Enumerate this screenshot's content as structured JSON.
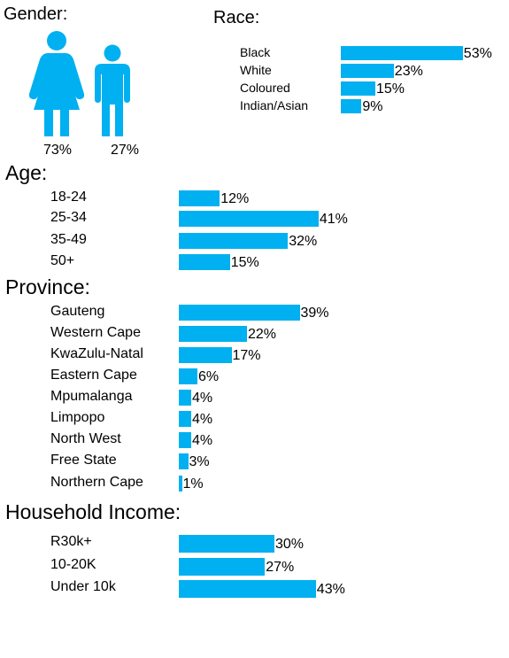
{
  "colors": {
    "bar": "#00b0f0",
    "icon": "#00b0f0"
  },
  "gender": {
    "title": "Gender:",
    "female_icon": "female-person-icon",
    "male_icon": "male-person-icon",
    "female_value": "73%",
    "male_value": "27%"
  },
  "chart_data": [
    {
      "type": "bar",
      "title": "Race:",
      "unit": "%",
      "categories": [
        "Black",
        "White",
        "Coloured",
        "Indian/Asian"
      ],
      "values": [
        53,
        23,
        15,
        9
      ],
      "labels": [
        "53%",
        "23%",
        "15%",
        "9%"
      ]
    },
    {
      "type": "bar",
      "title": "Age:",
      "unit": "%",
      "categories": [
        "18-24",
        "25-34",
        "35-49",
        "50+"
      ],
      "values": [
        12,
        41,
        32,
        15
      ],
      "labels": [
        "12%",
        "41%",
        "32%",
        "15%"
      ]
    },
    {
      "type": "bar",
      "title": "Province:",
      "unit": "%",
      "categories": [
        "Gauteng",
        "Western Cape",
        "KwaZulu-Natal",
        "Eastern Cape",
        "Mpumalanga",
        "Limpopo",
        "North West",
        "Free State",
        "Northern Cape"
      ],
      "values": [
        39,
        22,
        17,
        6,
        4,
        4,
        4,
        3,
        1
      ],
      "labels": [
        "39%",
        "22%",
        "17%",
        "6%",
        "4%",
        "4%",
        "4%",
        "3%",
        "1%"
      ]
    },
    {
      "type": "bar",
      "title": "Household Income:",
      "unit": "%",
      "categories": [
        "R30k+",
        "10-20K",
        "Under 10k"
      ],
      "values": [
        30,
        27,
        43
      ],
      "labels": [
        "30%",
        "27%",
        "43%"
      ]
    }
  ]
}
